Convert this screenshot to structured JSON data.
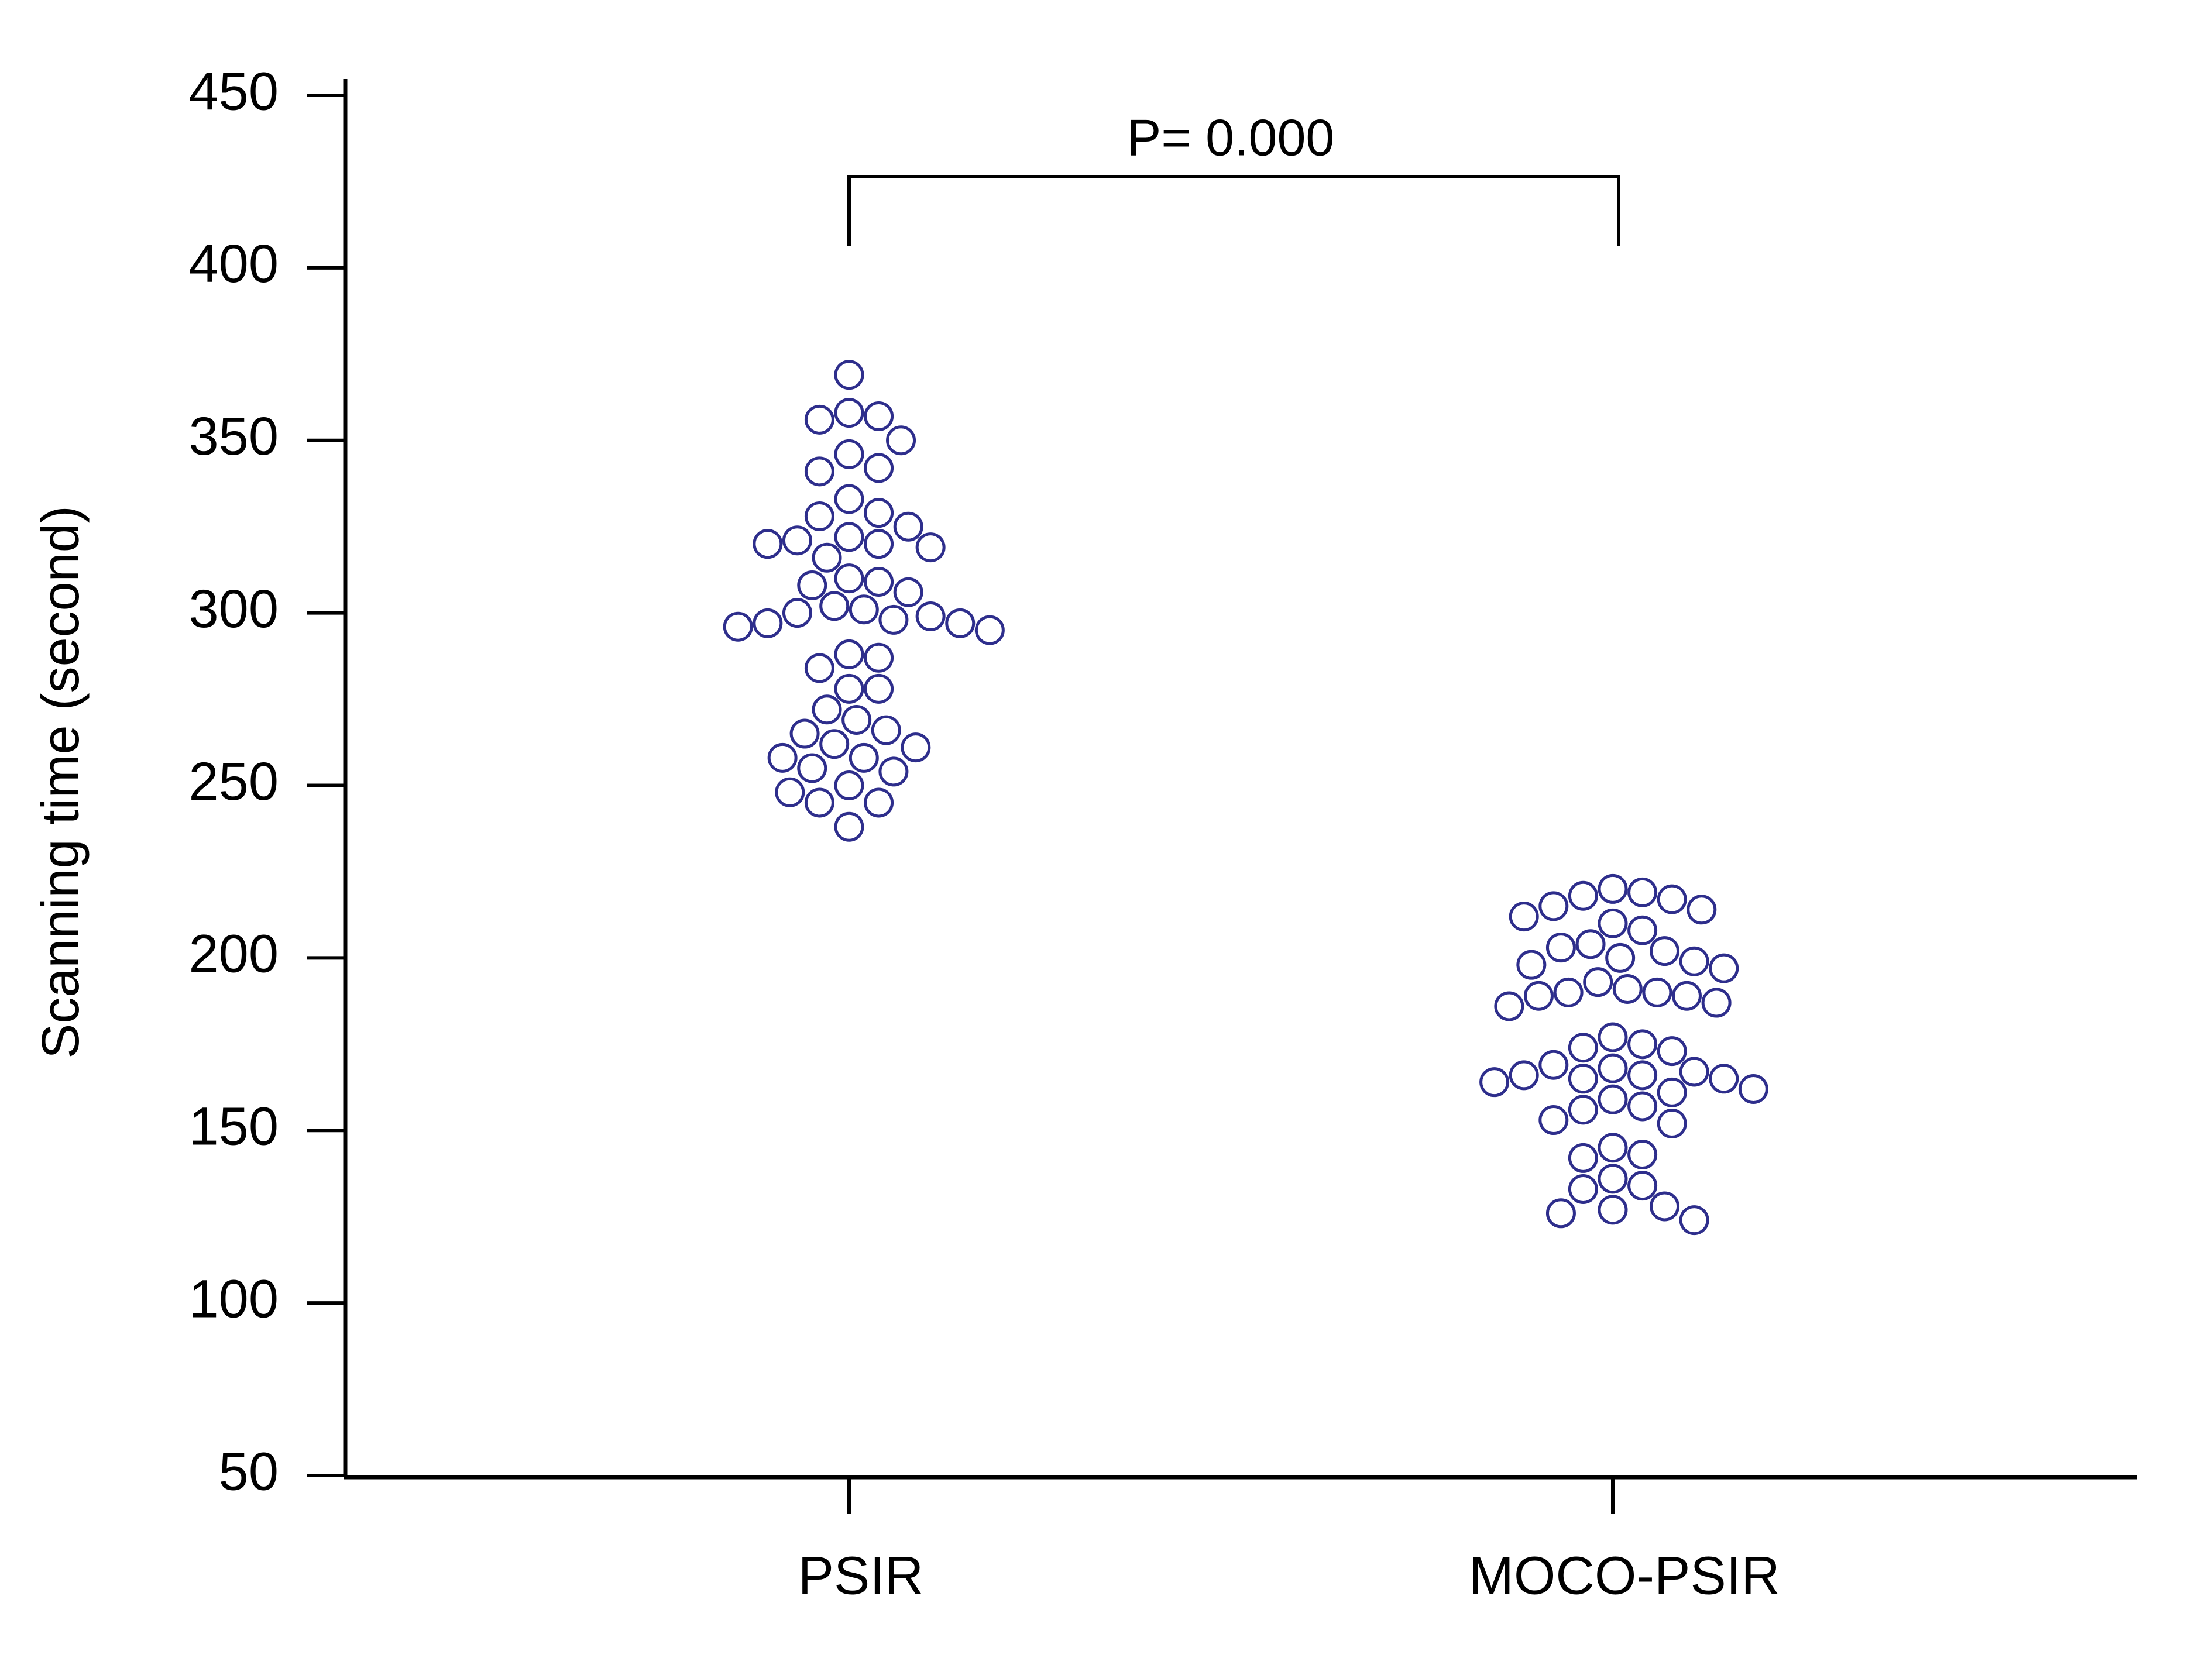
{
  "chart_data": {
    "type": "beeswarm",
    "ylabel": "Scanning time (second)",
    "categories": [
      "PSIR",
      "MOCO-PSIR"
    ],
    "values": [
      [
        369,
        358,
        357,
        356,
        350,
        346,
        342,
        341,
        333,
        329,
        328,
        325,
        322,
        321,
        320,
        320,
        319,
        316,
        310,
        309,
        308,
        306,
        302,
        301,
        300,
        299,
        298,
        297,
        297,
        296,
        295,
        288,
        287,
        284,
        278,
        278,
        272,
        269,
        266,
        265,
        262,
        261,
        258,
        258,
        255,
        254,
        250,
        248,
        245,
        245,
        238
      ],
      [
        220,
        219,
        218,
        217,
        215,
        214,
        212,
        210,
        208,
        204,
        203,
        202,
        200,
        199,
        198,
        197,
        193,
        191,
        190,
        190,
        189,
        189,
        187,
        186,
        177,
        175,
        174,
        173,
        169,
        168,
        167,
        166,
        166,
        165,
        165,
        164,
        162,
        161,
        159,
        157,
        156,
        153,
        152,
        145,
        143,
        142,
        136,
        134,
        133,
        128,
        127,
        126,
        124
      ]
    ],
    "color": "#2e2e8c",
    "ylim": [
      50,
      450
    ],
    "yticks": [
      50,
      100,
      150,
      200,
      250,
      300,
      350,
      400,
      450
    ],
    "annotation": "P= 0.000"
  }
}
